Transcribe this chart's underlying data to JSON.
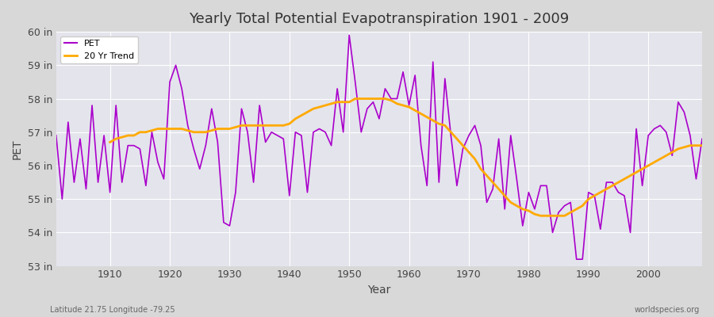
{
  "title": "Yearly Total Potential Evapotranspiration 1901 - 2009",
  "ylabel": "PET",
  "xlabel": "Year",
  "subtitle_left": "Latitude 21.75 Longitude -79.25",
  "subtitle_right": "worldspecies.org",
  "pet_color": "#aa00cc",
  "trend_color": "#ffaa00",
  "ylim": [
    53,
    60
  ],
  "yticks": [
    53,
    54,
    55,
    56,
    57,
    58,
    59,
    60
  ],
  "ytick_labels": [
    "53 in",
    "54 in",
    "55 in",
    "56 in",
    "57 in",
    "58 in",
    "59 in",
    "60 in"
  ],
  "xticks": [
    1910,
    1920,
    1930,
    1940,
    1950,
    1960,
    1970,
    1980,
    1990,
    2000
  ],
  "years": [
    1901,
    1902,
    1903,
    1904,
    1905,
    1906,
    1907,
    1908,
    1909,
    1910,
    1911,
    1912,
    1913,
    1914,
    1915,
    1916,
    1917,
    1918,
    1919,
    1920,
    1921,
    1922,
    1923,
    1924,
    1925,
    1926,
    1927,
    1928,
    1929,
    1930,
    1931,
    1932,
    1933,
    1934,
    1935,
    1936,
    1937,
    1938,
    1939,
    1940,
    1941,
    1942,
    1943,
    1944,
    1945,
    1946,
    1947,
    1948,
    1949,
    1950,
    1951,
    1952,
    1953,
    1954,
    1955,
    1956,
    1957,
    1958,
    1959,
    1960,
    1961,
    1962,
    1963,
    1964,
    1965,
    1966,
    1967,
    1968,
    1969,
    1970,
    1971,
    1972,
    1973,
    1974,
    1975,
    1976,
    1977,
    1978,
    1979,
    1980,
    1981,
    1982,
    1983,
    1984,
    1985,
    1986,
    1987,
    1988,
    1989,
    1990,
    1991,
    1992,
    1993,
    1994,
    1995,
    1996,
    1997,
    1998,
    1999,
    2000,
    2001,
    2002,
    2003,
    2004,
    2005,
    2006,
    2007,
    2008,
    2009
  ],
  "pet_values": [
    56.9,
    55.0,
    57.3,
    55.5,
    56.8,
    55.3,
    57.8,
    55.5,
    56.9,
    55.2,
    57.8,
    55.5,
    56.6,
    56.6,
    56.5,
    55.4,
    57.0,
    56.1,
    55.6,
    58.5,
    59.0,
    58.3,
    57.2,
    56.5,
    55.9,
    56.6,
    57.7,
    56.7,
    54.3,
    54.2,
    55.2,
    57.7,
    57.0,
    55.5,
    57.8,
    56.7,
    57.0,
    56.9,
    56.8,
    55.1,
    57.0,
    56.9,
    55.2,
    57.0,
    57.1,
    57.0,
    56.6,
    58.3,
    57.0,
    59.9,
    58.5,
    57.0,
    57.7,
    57.9,
    57.4,
    58.3,
    58.0,
    58.0,
    58.8,
    57.8,
    58.7,
    56.6,
    55.4,
    59.1,
    55.5,
    58.6,
    56.9,
    55.4,
    56.5,
    56.9,
    57.2,
    56.6,
    54.9,
    55.3,
    56.8,
    54.7,
    56.9,
    55.6,
    54.2,
    55.2,
    54.7,
    55.4,
    55.4,
    54.0,
    54.6,
    54.8,
    54.9,
    53.2,
    53.2,
    55.2,
    55.1,
    54.1,
    55.5,
    55.5,
    55.2,
    55.1,
    54.0,
    57.1,
    55.4,
    56.9,
    57.1,
    57.2,
    57.0,
    56.3,
    57.9,
    57.6,
    56.9,
    55.6,
    56.8
  ],
  "trend_years": [
    1910,
    1911,
    1912,
    1913,
    1914,
    1915,
    1916,
    1917,
    1918,
    1919,
    1920,
    1921,
    1922,
    1923,
    1924,
    1925,
    1926,
    1927,
    1928,
    1929,
    1930,
    1931,
    1932,
    1933,
    1934,
    1935,
    1936,
    1937,
    1938,
    1939,
    1940,
    1941,
    1942,
    1943,
    1944,
    1945,
    1946,
    1947,
    1948,
    1949,
    1950,
    1951,
    1952,
    1953,
    1954,
    1955,
    1956,
    1957,
    1958,
    1959,
    1960,
    1961,
    1962,
    1963,
    1964,
    1965,
    1966,
    1967,
    1968,
    1969,
    1970,
    1971,
    1972,
    1973,
    1974,
    1975,
    1976,
    1977,
    1978,
    1979,
    1980,
    1981,
    1982,
    1983,
    1984,
    1985,
    1986,
    1987,
    1988,
    1989,
    1990,
    1991,
    1992,
    1993,
    1994,
    1995,
    1996,
    1997,
    1998,
    1999,
    2000,
    2001,
    2002,
    2003,
    2004,
    2005,
    2006,
    2007,
    2008,
    2009
  ],
  "trend_values": [
    56.7,
    56.8,
    56.85,
    56.9,
    56.9,
    57.0,
    57.0,
    57.05,
    57.1,
    57.1,
    57.1,
    57.1,
    57.1,
    57.05,
    57.0,
    57.0,
    57.0,
    57.05,
    57.1,
    57.1,
    57.1,
    57.15,
    57.2,
    57.2,
    57.2,
    57.2,
    57.2,
    57.2,
    57.2,
    57.2,
    57.25,
    57.4,
    57.5,
    57.6,
    57.7,
    57.75,
    57.8,
    57.85,
    57.9,
    57.9,
    57.9,
    58.0,
    58.0,
    58.0,
    58.0,
    58.0,
    58.0,
    57.95,
    57.85,
    57.8,
    57.75,
    57.65,
    57.55,
    57.45,
    57.35,
    57.25,
    57.2,
    57.0,
    56.8,
    56.6,
    56.4,
    56.2,
    55.9,
    55.7,
    55.5,
    55.3,
    55.1,
    54.9,
    54.8,
    54.7,
    54.65,
    54.55,
    54.5,
    54.5,
    54.5,
    54.5,
    54.5,
    54.6,
    54.7,
    54.8,
    55.0,
    55.1,
    55.2,
    55.3,
    55.4,
    55.5,
    55.6,
    55.7,
    55.8,
    55.9,
    56.0,
    56.1,
    56.2,
    56.3,
    56.4,
    56.5,
    56.55,
    56.6,
    56.6,
    56.6
  ]
}
